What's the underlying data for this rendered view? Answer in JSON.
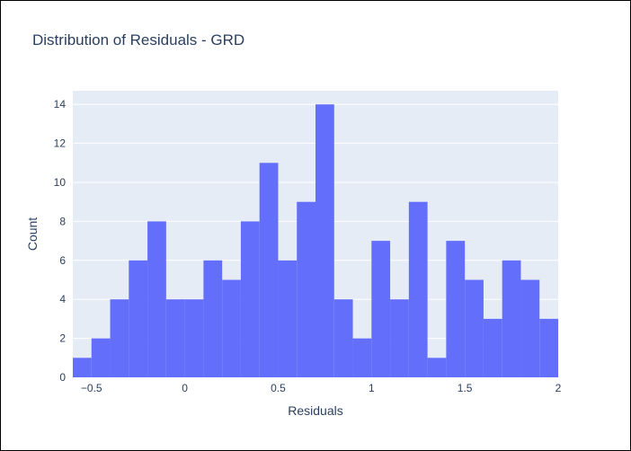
{
  "chart_data": {
    "type": "bar",
    "subtype": "histogram",
    "title": "Distribution of Residuals - GRD",
    "xlabel": "Residuals",
    "ylabel": "Count",
    "bin_width": 0.1,
    "bins": [
      {
        "x0": -0.6,
        "x1": -0.5,
        "count": 1
      },
      {
        "x0": -0.5,
        "x1": -0.4,
        "count": 2
      },
      {
        "x0": -0.4,
        "x1": -0.3,
        "count": 4
      },
      {
        "x0": -0.3,
        "x1": -0.2,
        "count": 6
      },
      {
        "x0": -0.2,
        "x1": -0.1,
        "count": 8
      },
      {
        "x0": -0.1,
        "x1": 0.0,
        "count": 4
      },
      {
        "x0": 0.0,
        "x1": 0.1,
        "count": 4
      },
      {
        "x0": 0.1,
        "x1": 0.2,
        "count": 6
      },
      {
        "x0": 0.2,
        "x1": 0.3,
        "count": 5
      },
      {
        "x0": 0.3,
        "x1": 0.4,
        "count": 8
      },
      {
        "x0": 0.4,
        "x1": 0.5,
        "count": 11
      },
      {
        "x0": 0.5,
        "x1": 0.6,
        "count": 6
      },
      {
        "x0": 0.6,
        "x1": 0.7,
        "count": 9
      },
      {
        "x0": 0.7,
        "x1": 0.8,
        "count": 14
      },
      {
        "x0": 0.8,
        "x1": 0.9,
        "count": 4
      },
      {
        "x0": 0.9,
        "x1": 1.0,
        "count": 2
      },
      {
        "x0": 1.0,
        "x1": 1.1,
        "count": 7
      },
      {
        "x0": 1.1,
        "x1": 1.2,
        "count": 4
      },
      {
        "x0": 1.2,
        "x1": 1.3,
        "count": 9
      },
      {
        "x0": 1.3,
        "x1": 1.4,
        "count": 1
      },
      {
        "x0": 1.4,
        "x1": 1.5,
        "count": 7
      },
      {
        "x0": 1.5,
        "x1": 1.6,
        "count": 5
      },
      {
        "x0": 1.6,
        "x1": 1.7,
        "count": 3
      },
      {
        "x0": 1.7,
        "x1": 1.8,
        "count": 6
      },
      {
        "x0": 1.8,
        "x1": 1.9,
        "count": 5
      },
      {
        "x0": 1.9,
        "x1": 2.0,
        "count": 3
      }
    ],
    "xlim": [
      -0.6,
      2.0
    ],
    "ylim": [
      0,
      14.7
    ],
    "x_ticks": [
      {
        "value": -0.5,
        "label": "−0.5"
      },
      {
        "value": 0,
        "label": "0"
      },
      {
        "value": 0.5,
        "label": "0.5"
      },
      {
        "value": 1,
        "label": "1"
      },
      {
        "value": 1.5,
        "label": "1.5"
      },
      {
        "value": 2,
        "label": "2"
      }
    ],
    "y_ticks": [
      {
        "value": 0,
        "label": "0"
      },
      {
        "value": 2,
        "label": "2"
      },
      {
        "value": 4,
        "label": "4"
      },
      {
        "value": 6,
        "label": "6"
      },
      {
        "value": 8,
        "label": "8"
      },
      {
        "value": 10,
        "label": "10"
      },
      {
        "value": 12,
        "label": "12"
      },
      {
        "value": 14,
        "label": "14"
      }
    ],
    "grid": true,
    "legend": false,
    "colors": {
      "bar": "#636efa",
      "plot_background": "#e5ecf6",
      "grid": "#ffffff",
      "text": "#2a3f5f"
    }
  }
}
